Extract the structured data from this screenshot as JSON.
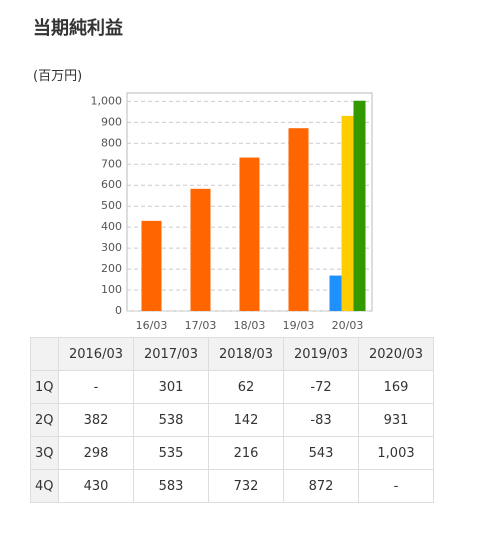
{
  "header": {
    "title": "当期純利益",
    "unit": "(百万円)"
  },
  "chart_data": {
    "type": "bar",
    "categories": [
      "16/03",
      "17/03",
      "18/03",
      "19/03",
      "20/03"
    ],
    "series": [
      {
        "color": "#ff6600",
        "values": [
          430,
          583,
          732,
          872,
          null
        ]
      },
      {
        "color": "#1e90ff",
        "values": [
          null,
          null,
          null,
          null,
          169
        ]
      },
      {
        "color": "#ffcc00",
        "values": [
          null,
          null,
          null,
          null,
          931
        ]
      },
      {
        "color": "#339900",
        "values": [
          null,
          null,
          null,
          null,
          1003
        ]
      }
    ],
    "ylim": [
      0,
      1040
    ],
    "yticks": [
      0,
      100,
      200,
      300,
      400,
      500,
      600,
      700,
      800,
      900,
      {
        "value": 1000,
        "label": "1,000"
      }
    ],
    "grid": true
  },
  "table": {
    "columns": [
      "2016/03",
      "2017/03",
      "2018/03",
      "2019/03",
      "2020/03"
    ],
    "rows": [
      {
        "label": "1Q",
        "cells": [
          "-",
          "301",
          "62",
          "-72",
          "169"
        ]
      },
      {
        "label": "2Q",
        "cells": [
          "382",
          "538",
          "142",
          "-83",
          "931"
        ]
      },
      {
        "label": "3Q",
        "cells": [
          "298",
          "535",
          "216",
          "543",
          "1,003"
        ]
      },
      {
        "label": "4Q",
        "cells": [
          "430",
          "583",
          "732",
          "872",
          "-"
        ]
      }
    ]
  }
}
